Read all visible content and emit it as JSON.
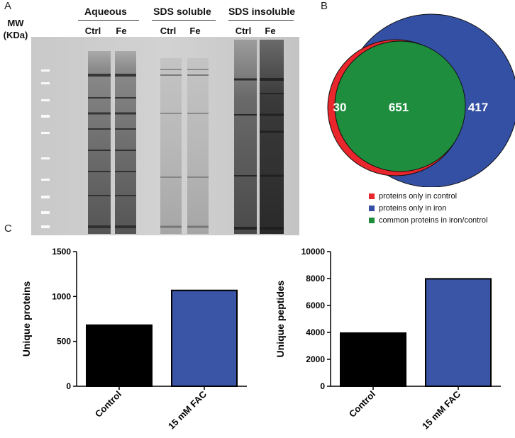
{
  "panels": {
    "a": "A",
    "b": "B",
    "c": "C"
  },
  "gel": {
    "mw_label": [
      "MW",
      "(KDa)"
    ],
    "groups": [
      {
        "name": "Aqueous",
        "lanes": [
          "Ctrl",
          "Fe"
        ]
      },
      {
        "name": "SDS soluble",
        "lanes": [
          "Ctrl",
          "Fe"
        ]
      },
      {
        "name": "SDS insoluble",
        "lanes": [
          "Ctrl",
          "Fe"
        ]
      }
    ]
  },
  "venn": {
    "control_only": "30",
    "common": "651",
    "iron_only": "417",
    "colors": {
      "control": "#e8262b",
      "iron": "#3450a4",
      "common": "#1e8e3e"
    },
    "legend": [
      {
        "label": "proteins only in control",
        "color": "#e8262b"
      },
      {
        "label": "proteins only in iron",
        "color": "#3450a4"
      },
      {
        "label": "common proteins in iron/control",
        "color": "#1e8e3e"
      }
    ]
  },
  "chart_data": [
    {
      "type": "bar",
      "categories": [
        "Control",
        "15 mM FAC"
      ],
      "values": [
        681,
        1068
      ],
      "ylabel": "Unique proteins",
      "ylim": [
        0,
        1500
      ],
      "yticks": [
        0,
        500,
        1000,
        1500
      ],
      "colors": [
        "#000000",
        "#3a55a6"
      ]
    },
    {
      "type": "bar",
      "categories": [
        "Control",
        "15 mM FAC"
      ],
      "values": [
        3950,
        7980
      ],
      "ylabel": "Unique peptides",
      "ylim": [
        0,
        10000
      ],
      "yticks": [
        0,
        2000,
        4000,
        6000,
        8000,
        10000
      ],
      "colors": [
        "#000000",
        "#3a55a6"
      ]
    }
  ]
}
